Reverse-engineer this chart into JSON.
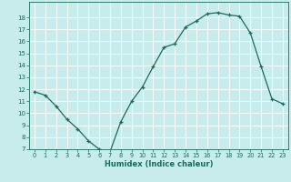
{
  "x": [
    0,
    1,
    2,
    3,
    4,
    5,
    6,
    7,
    8,
    9,
    10,
    11,
    12,
    13,
    14,
    15,
    16,
    17,
    18,
    19,
    20,
    21,
    22,
    23
  ],
  "y": [
    11.8,
    11.5,
    10.6,
    9.5,
    8.7,
    7.7,
    7.0,
    6.8,
    9.3,
    11.0,
    12.2,
    13.9,
    15.5,
    15.8,
    17.2,
    17.7,
    18.3,
    18.4,
    18.2,
    18.1,
    16.7,
    13.9,
    11.2,
    10.8
  ],
  "xlabel": "Humidex (Indice chaleur)",
  "bg_color": "#c8ecec",
  "grid_color": "#ffffff",
  "line_color": "#1a6b5a",
  "marker_color": "#1a6b5a",
  "tick_color": "#1a6b5a",
  "label_color": "#1a6b5a",
  "ylim": [
    7,
    19
  ],
  "xlim": [
    -0.5,
    23.5
  ],
  "yticks": [
    7,
    8,
    9,
    10,
    11,
    12,
    13,
    14,
    15,
    16,
    17,
    18
  ],
  "xticks": [
    0,
    1,
    2,
    3,
    4,
    5,
    6,
    7,
    8,
    9,
    10,
    11,
    12,
    13,
    14,
    15,
    16,
    17,
    18,
    19,
    20,
    21,
    22,
    23
  ]
}
